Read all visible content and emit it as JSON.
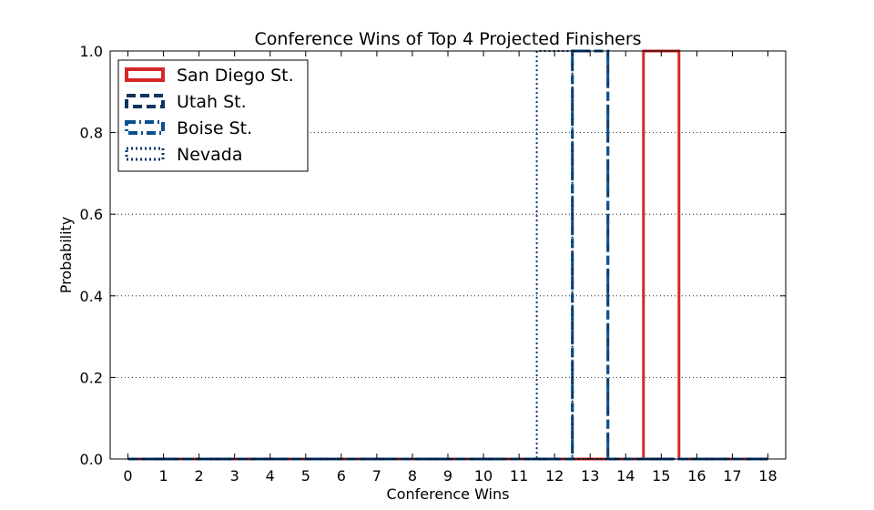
{
  "chart_data": {
    "type": "histogram-step",
    "title": "Conference Wins of Top 4 Projected Finishers",
    "xlabel": "Conference Wins",
    "ylabel": "Probability",
    "xlim": [
      -0.5,
      18.5
    ],
    "ylim": [
      0.0,
      1.0
    ],
    "x_ticks": [
      "0",
      "1",
      "2",
      "3",
      "4",
      "5",
      "6",
      "7",
      "8",
      "9",
      "10",
      "11",
      "12",
      "13",
      "14",
      "15",
      "16",
      "17",
      "18"
    ],
    "y_ticks": [
      "0.0",
      "0.2",
      "0.4",
      "0.6",
      "0.8",
      "1.0"
    ],
    "grid": "y-dotted",
    "legend_position": "top-left",
    "series": [
      {
        "name": "San Diego St.",
        "color": "#d62728",
        "style": "solid",
        "bin": [
          14.5,
          15.5
        ],
        "probability": 1.0
      },
      {
        "name": "Utah St.",
        "color": "#0f3460",
        "style": "dashed",
        "bin": [
          12.5,
          13.5
        ],
        "probability": 1.0
      },
      {
        "name": "Boise St.",
        "color": "#0a5090",
        "style": "dashdot",
        "bin": [
          12.5,
          13.5
        ],
        "probability": 1.0
      },
      {
        "name": "Nevada",
        "color": "#003366",
        "style": "dotted",
        "bin": [
          11.5,
          12.5
        ],
        "probability": 1.0
      }
    ]
  }
}
